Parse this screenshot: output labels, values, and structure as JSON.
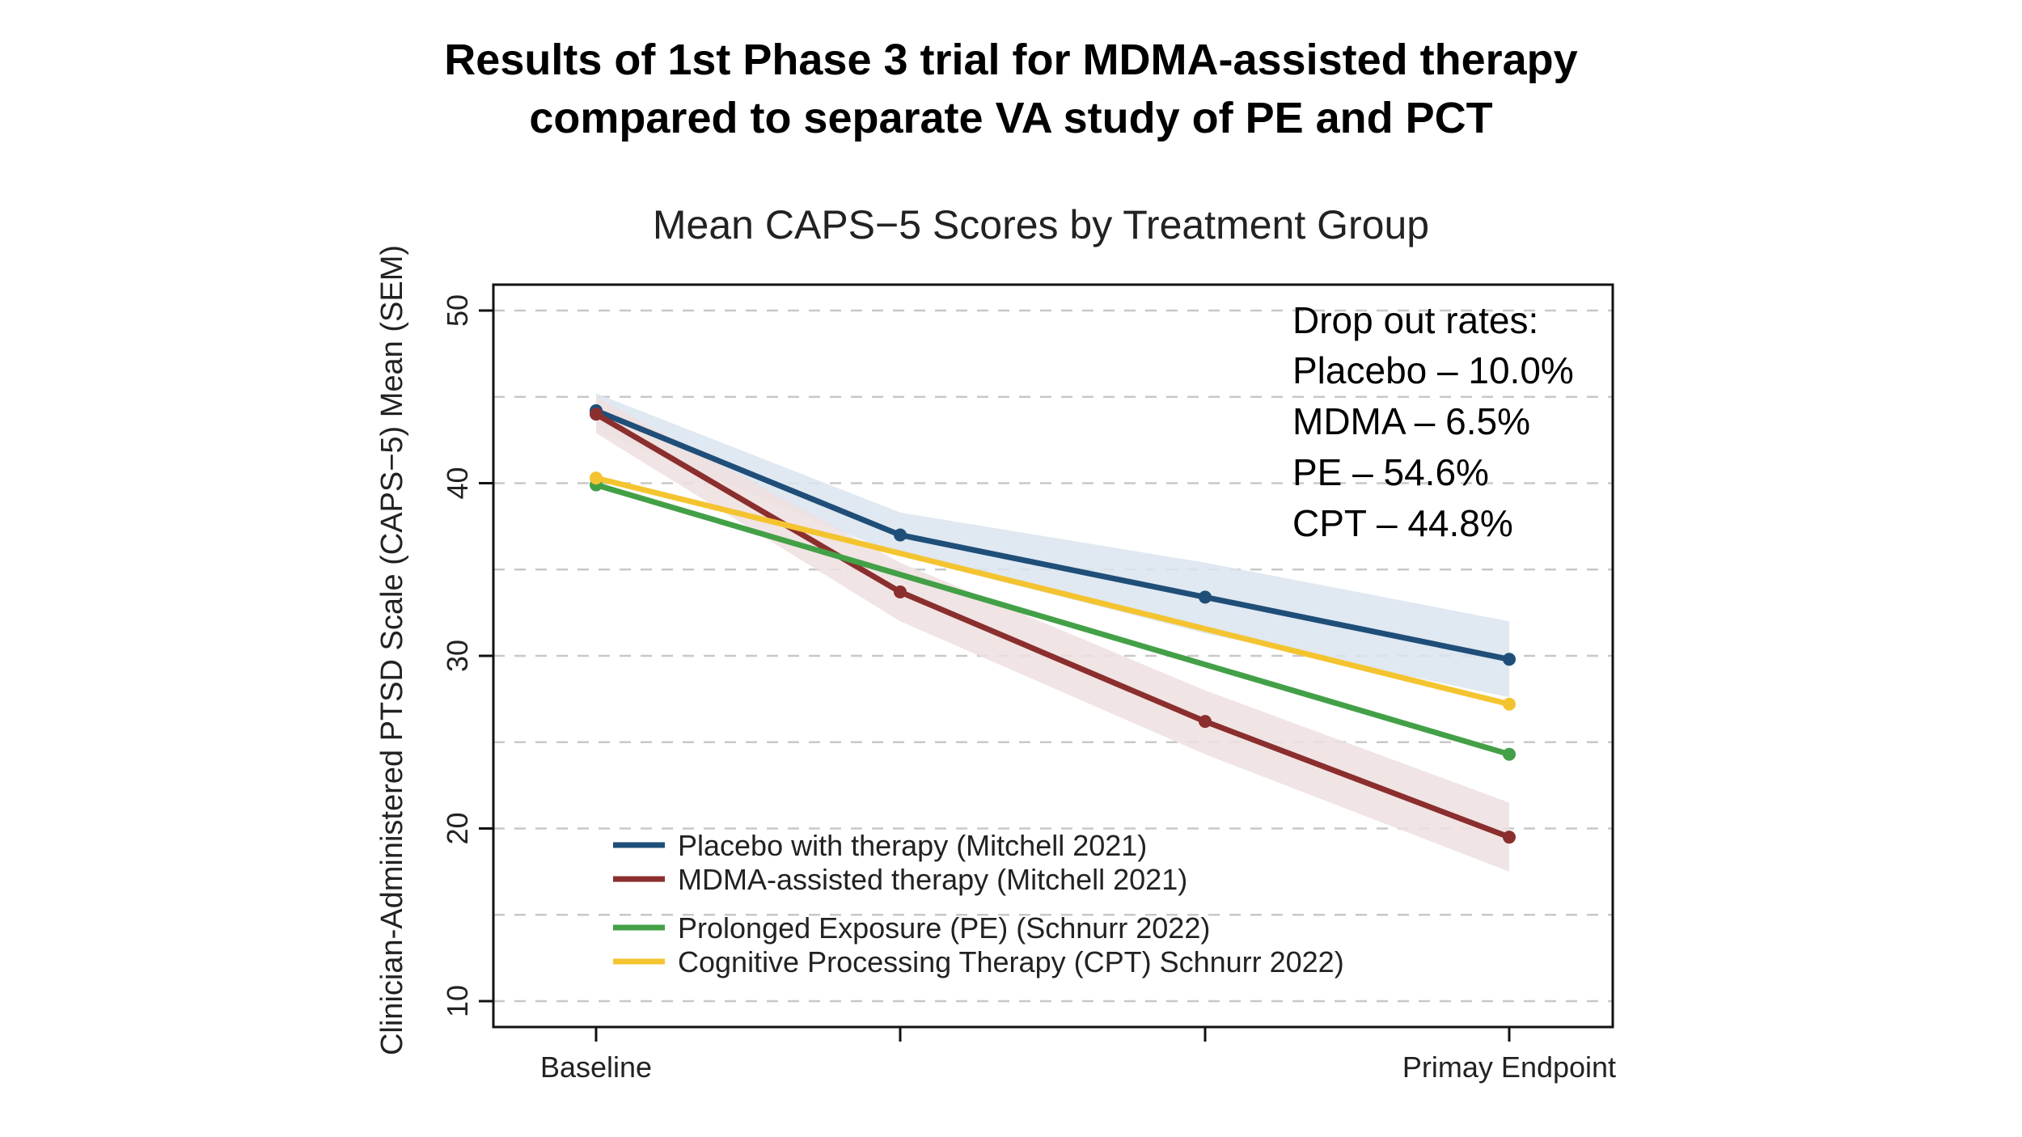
{
  "slide": {
    "title_line1": "Results of 1st Phase 3 trial for MDMA-assisted therapy",
    "title_line2": "compared to separate VA study of PE and PCT"
  },
  "chart_data": {
    "type": "line",
    "title": "Mean CAPS−5 Scores by Treatment Group",
    "xlabel": "",
    "ylabel": "Clinician-Administered PTSD Scale (CAPS−5) Mean (SEM)",
    "categories": [
      "Baseline",
      "",
      "",
      "Primay Endpoint"
    ],
    "ylim": [
      8.5,
      51.5
    ],
    "yticks": [
      10,
      20,
      30,
      40,
      50
    ],
    "grid_dashed": [
      10,
      15,
      20,
      25,
      30,
      35,
      40,
      45,
      50
    ],
    "series": [
      {
        "name": "Placebo with therapy (Mitchell 2021)",
        "color": "#1f4e79",
        "values": [
          44.2,
          37.0,
          33.4,
          29.8
        ],
        "band_lower": [
          43.1,
          35.8,
          31.3,
          27.6
        ],
        "band_upper": [
          45.2,
          38.3,
          35.4,
          32.0
        ],
        "band_color": "#dbe4ee"
      },
      {
        "name": "MDMA-assisted therapy (Mitchell 2021)",
        "color": "#8b2e2e",
        "values": [
          44.0,
          33.7,
          26.2,
          19.5
        ],
        "band_lower": [
          42.9,
          32.0,
          24.3,
          17.5
        ],
        "band_upper": [
          45.0,
          35.4,
          28.0,
          21.5
        ],
        "band_color": "#efdfdf"
      },
      {
        "name": "Prolonged Exposure (PE) (Schnurr 2022)",
        "color": "#43a047",
        "values": [
          39.9,
          null,
          null,
          24.3
        ]
      },
      {
        "name": "Cognitive Processing Therapy (CPT) Schnurr 2022)",
        "color": "#f4c430",
        "values": [
          40.3,
          null,
          null,
          27.2
        ]
      }
    ],
    "legend_position": "bottom-left",
    "annotation": {
      "heading": "Drop out rates:",
      "lines": [
        "Placebo – 10.0%",
        "MDMA – 6.5%",
        "PE – 54.6%",
        "CPT – 44.8%"
      ]
    }
  }
}
